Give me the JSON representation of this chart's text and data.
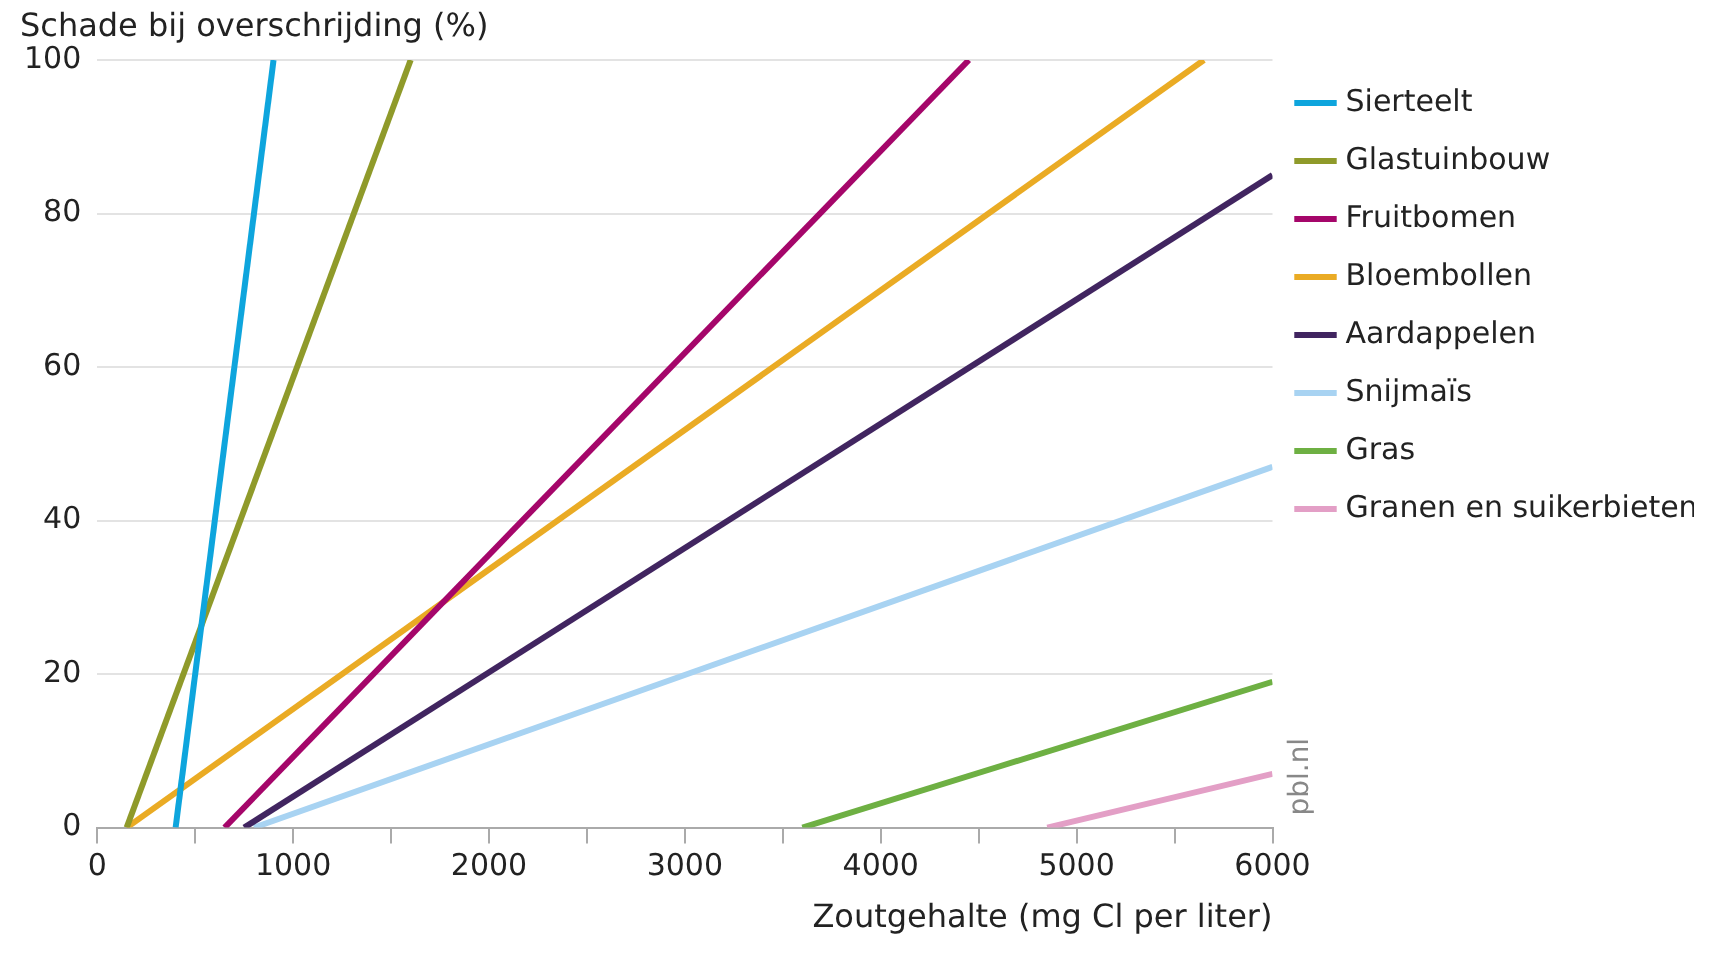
{
  "chart_data": {
    "type": "line",
    "ylabel": "Schade bij overschrijding (%)",
    "xlabel": "Zoutgehalte (mg Cl per liter)",
    "series": [
      {
        "name": "Sierteelt",
        "color": "#0ea5dd",
        "x": [
          400,
          900
        ],
        "values": [
          0,
          100
        ]
      },
      {
        "name": "Glastuinbouw",
        "color": "#8f9a2a",
        "x": [
          150,
          1600
        ],
        "values": [
          0,
          100
        ]
      },
      {
        "name": "Fruitbomen",
        "color": "#a5066a",
        "x": [
          650,
          4450
        ],
        "values": [
          0,
          100
        ]
      },
      {
        "name": "Bloembollen",
        "color": "#eaab24",
        "x": [
          150,
          5650
        ],
        "values": [
          0,
          100
        ]
      },
      {
        "name": "Aardappelen",
        "color": "#412560",
        "x": [
          750,
          6000
        ],
        "values": [
          0,
          85
        ]
      },
      {
        "name": "Snijmaïs",
        "color": "#a8d3f2",
        "x": [
          800,
          6000
        ],
        "values": [
          0,
          47
        ]
      },
      {
        "name": "Gras",
        "color": "#6eb043",
        "x": [
          3600,
          6000
        ],
        "values": [
          0,
          19
        ]
      },
      {
        "name": "Granen en suikerbieten",
        "color": "#e39fc6",
        "x": [
          4850,
          6000
        ],
        "values": [
          0,
          7
        ]
      }
    ],
    "xlim": [
      0,
      6000
    ],
    "xticks": [
      0,
      {
        "value": 500,
        "label": null
      },
      1000,
      {
        "value": 1500,
        "label": null
      },
      2000,
      {
        "value": 2500,
        "label": null
      },
      3000,
      {
        "value": 3500,
        "label": null
      },
      4000,
      {
        "value": 4500,
        "label": null
      },
      5000,
      {
        "value": 5500,
        "label": null
      },
      6000
    ],
    "ylim": [
      0,
      100
    ],
    "yticks": [
      0,
      20,
      40,
      60,
      80,
      100
    ],
    "grid": "y",
    "legend": "right",
    "marker": "none",
    "line_style": "solid",
    "annotations": [
      "pbl.nl"
    ]
  }
}
